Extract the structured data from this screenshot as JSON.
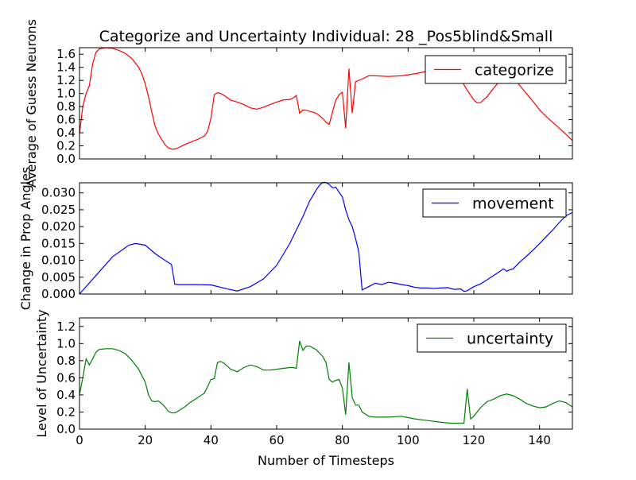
{
  "chart_data": {
    "type": "line",
    "title": "Categorize and Uncertainty Individual: 28 _Pos5blind&Small",
    "xlabel": "Number of Timesteps",
    "xlim": [
      0,
      150
    ],
    "xticks": [
      "0",
      "20",
      "40",
      "60",
      "80",
      "100",
      "120",
      "140"
    ],
    "panels": [
      {
        "ylabel": "Average of Guess Neurons",
        "ylim": [
          0,
          1.7
        ],
        "yticks": [
          "0.0",
          "0.2",
          "0.4",
          "0.6",
          "0.8",
          "1.0",
          "1.2",
          "1.4",
          "1.6"
        ],
        "legend_position": "top-right",
        "series": [
          {
            "name": "categorize",
            "color": "#ff0000",
            "x": [
              0,
              1,
              2,
              3,
              4,
              5,
              6,
              8,
              10,
              12,
              14,
              16,
              18,
              19,
              20,
              21,
              22,
              23,
              24,
              25,
              26,
              27,
              28,
              29,
              30,
              32,
              34,
              36,
              38,
              39,
              40,
              41,
              42,
              43,
              44,
              46,
              48,
              50,
              52,
              54,
              56,
              58,
              60,
              62,
              64,
              65,
              66,
              67,
              68,
              70,
              72,
              74,
              75,
              76,
              77,
              78,
              79,
              80,
              81,
              82,
              83,
              84,
              86,
              88,
              90,
              94,
              98,
              102,
              106,
              110,
              112,
              114,
              116,
              118,
              120,
              121,
              122,
              124,
              126,
              128,
              130,
              132,
              134,
              136,
              138,
              140,
              142,
              144,
              146,
              148,
              150
            ],
            "values": [
              0.38,
              0.8,
              1.0,
              1.12,
              1.45,
              1.63,
              1.68,
              1.7,
              1.69,
              1.66,
              1.61,
              1.53,
              1.4,
              1.3,
              1.15,
              0.95,
              0.72,
              0.5,
              0.38,
              0.3,
              0.22,
              0.17,
              0.15,
              0.15,
              0.17,
              0.22,
              0.26,
              0.3,
              0.35,
              0.42,
              0.62,
              0.98,
              1.01,
              1.0,
              0.97,
              0.9,
              0.87,
              0.83,
              0.78,
              0.76,
              0.79,
              0.83,
              0.87,
              0.9,
              0.91,
              0.93,
              0.97,
              0.7,
              0.75,
              0.73,
              0.7,
              0.62,
              0.56,
              0.53,
              0.72,
              0.9,
              0.98,
              1.02,
              0.47,
              1.38,
              0.7,
              1.18,
              1.22,
              1.27,
              1.27,
              1.26,
              1.27,
              1.3,
              1.34,
              1.38,
              1.35,
              1.3,
              1.22,
              1.05,
              0.9,
              0.86,
              0.86,
              0.95,
              1.08,
              1.2,
              1.3,
              1.25,
              1.12,
              1.0,
              0.88,
              0.75,
              0.65,
              0.56,
              0.47,
              0.38,
              0.28
            ]
          }
        ]
      },
      {
        "ylabel": "Change in Prop Angles",
        "ylim": [
          0,
          0.033
        ],
        "yticks": [
          "0.000",
          "0.005",
          "0.010",
          "0.015",
          "0.020",
          "0.025",
          "0.030"
        ],
        "legend_position": "top-right",
        "series": [
          {
            "name": "movement",
            "color": "#0000ff",
            "x": [
              0,
              5,
              10,
              15,
              17,
              20,
              23,
              26,
              28,
              29,
              30,
              35,
              40,
              45,
              48,
              52,
              56,
              60,
              64,
              66,
              68,
              70,
              72,
              73,
              74,
              75,
              76,
              77,
              78,
              79,
              80,
              81,
              82,
              83,
              84,
              85,
              86,
              88,
              90,
              92,
              94,
              96,
              98,
              100,
              102,
              104,
              106,
              108,
              110,
              112,
              114,
              116,
              117,
              118,
              120,
              122,
              124,
              126,
              128,
              129,
              130,
              131,
              132,
              134,
              136,
              138,
              140,
              142,
              144,
              146,
              148,
              150
            ],
            "values": [
              0,
              0.0055,
              0.011,
              0.0145,
              0.015,
              0.0145,
              0.012,
              0.01,
              0.0088,
              0.0029,
              0.0028,
              0.0028,
              0.0027,
              0.0015,
              0.0009,
              0.0022,
              0.0045,
              0.0085,
              0.015,
              0.019,
              0.023,
              0.0275,
              0.0308,
              0.0322,
              0.0331,
              0.0331,
              0.0325,
              0.0315,
              0.0317,
              0.0302,
              0.0288,
              0.025,
              0.022,
              0.02,
              0.0165,
              0.0125,
              0.0012,
              0.0022,
              0.0032,
              0.0028,
              0.0035,
              0.0032,
              0.0028,
              0.0025,
              0.002,
              0.0018,
              0.0018,
              0.0017,
              0.0018,
              0.0019,
              0.0014,
              0.0015,
              0.0008,
              0.001,
              0.0022,
              0.003,
              0.0042,
              0.0055,
              0.0068,
              0.0075,
              0.0068,
              0.0072,
              0.0075,
              0.0095,
              0.0112,
              0.013,
              0.015,
              0.017,
              0.019,
              0.0212,
              0.0232,
              0.0242
            ]
          }
        ]
      },
      {
        "ylabel": "Level of Uncertainty",
        "ylim": [
          0,
          1.3
        ],
        "yticks": [
          "0.0",
          "0.2",
          "0.4",
          "0.6",
          "0.8",
          "1.0",
          "1.2"
        ],
        "legend_position": "top-right",
        "series": [
          {
            "name": "uncertainty",
            "color": "#008000",
            "x": [
              0,
              1,
              2,
              3,
              4,
              5,
              6,
              8,
              10,
              12,
              14,
              16,
              18,
              20,
              21,
              22,
              23,
              24,
              25,
              26,
              27,
              28,
              29,
              30,
              32,
              34,
              36,
              38,
              39,
              40,
              41,
              42,
              43,
              44,
              46,
              48,
              50,
              52,
              54,
              56,
              58,
              60,
              62,
              64,
              65,
              66,
              67,
              68,
              69,
              70,
              72,
              74,
              75,
              76,
              77,
              78,
              79,
              80,
              81,
              82,
              83,
              84,
              85,
              86,
              88,
              90,
              94,
              98,
              102,
              106,
              110,
              113,
              115,
              116,
              117,
              118,
              119,
              120,
              122,
              124,
              126,
              128,
              130,
              132,
              134,
              136,
              138,
              140,
              142,
              144,
              146,
              148,
              150
            ],
            "values": [
              0.4,
              0.6,
              0.82,
              0.75,
              0.82,
              0.9,
              0.93,
              0.94,
              0.94,
              0.92,
              0.88,
              0.8,
              0.7,
              0.55,
              0.4,
              0.33,
              0.32,
              0.33,
              0.3,
              0.26,
              0.21,
              0.19,
              0.19,
              0.21,
              0.26,
              0.32,
              0.37,
              0.42,
              0.5,
              0.58,
              0.59,
              0.78,
              0.79,
              0.77,
              0.7,
              0.67,
              0.72,
              0.75,
              0.73,
              0.69,
              0.69,
              0.7,
              0.71,
              0.72,
              0.72,
              0.71,
              1.03,
              0.92,
              0.97,
              0.97,
              0.93,
              0.85,
              0.78,
              0.58,
              0.55,
              0.57,
              0.58,
              0.48,
              0.17,
              0.78,
              0.37,
              0.28,
              0.28,
              0.2,
              0.15,
              0.14,
              0.14,
              0.15,
              0.12,
              0.1,
              0.08,
              0.07,
              0.07,
              0.07,
              0.07,
              0.47,
              0.12,
              0.15,
              0.25,
              0.32,
              0.35,
              0.39,
              0.41,
              0.39,
              0.35,
              0.3,
              0.27,
              0.25,
              0.26,
              0.3,
              0.33,
              0.31,
              0.26
            ]
          }
        ]
      }
    ]
  }
}
